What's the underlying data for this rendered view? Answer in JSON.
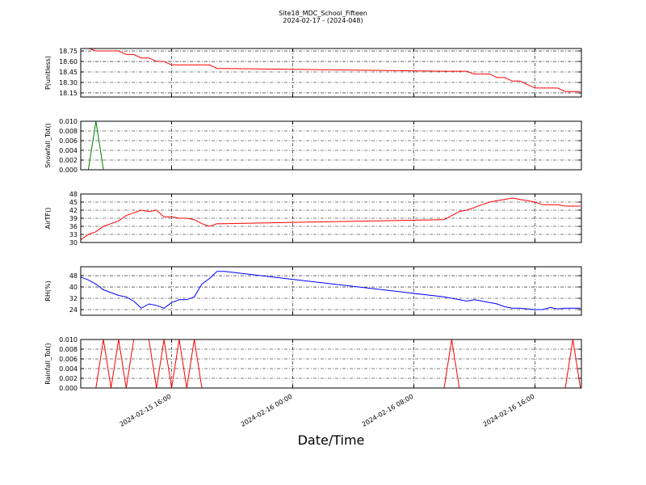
{
  "figure": {
    "title": "Site18_MDC_School_Fifteen",
    "subtitle": "2024-02-17 - (2024-048)",
    "xlabel": "Date/Time",
    "xlim": [
      "2024-02-15 10:00",
      "2024-02-16 19:04"
    ],
    "xticks": [
      "2024-02-15 16:00",
      "2024-02-16 00:00",
      "2024-02-16 08:00",
      "2024-02-16 16:00"
    ],
    "x": [
      "2024-02-15 10:00",
      "2024-02-15 10:30",
      "2024-02-15 11:00",
      "2024-02-15 11:30",
      "2024-02-15 12:00",
      "2024-02-15 12:30",
      "2024-02-15 13:00",
      "2024-02-15 13:30",
      "2024-02-15 14:00",
      "2024-02-15 14:30",
      "2024-02-15 15:00",
      "2024-02-15 15:30",
      "2024-02-15 16:00",
      "2024-02-15 16:30",
      "2024-02-15 17:00",
      "2024-02-15 17:30",
      "2024-02-15 18:00",
      "2024-02-15 18:30",
      "2024-02-15 19:00",
      "2024-02-15 19:30",
      "2024-02-16 10:00",
      "2024-02-16 10:30",
      "2024-02-16 11:00",
      "2024-02-16 11:30",
      "2024-02-16 12:00",
      "2024-02-16 12:30",
      "2024-02-16 13:00",
      "2024-02-16 13:30",
      "2024-02-16 14:00",
      "2024-02-16 14:30",
      "2024-02-16 15:00",
      "2024-02-16 15:30",
      "2024-02-16 16:00",
      "2024-02-16 16:30",
      "2024-02-16 17:00",
      "2024-02-16 17:30",
      "2024-02-16 18:00",
      "2024-02-16 18:30",
      "2024-02-16 19:00"
    ]
  },
  "chart_data": [
    {
      "type": "line",
      "ylabel": "P(unitless)",
      "color": "#ff0000",
      "grid": true,
      "ylim": [
        18.092,
        18.785
      ],
      "yticks": [
        18.15,
        {
          "value": 18.3,
          "label": "18.30"
        },
        18.45,
        {
          "value": 18.6,
          "label": "18.60"
        },
        18.75
      ],
      "values": [
        18.79,
        18.79,
        18.75,
        18.75,
        18.75,
        18.75,
        18.7,
        18.7,
        18.65,
        18.65,
        18.6,
        18.6,
        18.55,
        18.55,
        18.55,
        18.55,
        18.55,
        18.55,
        18.5,
        18.5,
        18.46,
        18.46,
        18.46,
        18.46,
        18.42,
        18.42,
        18.42,
        18.37,
        18.37,
        18.32,
        18.32,
        18.27,
        18.22,
        18.22,
        18.22,
        18.22,
        18.17,
        18.17,
        18.17
      ]
    },
    {
      "type": "line",
      "ylabel": "Snowfall_Tot()",
      "color": "#007f00",
      "grid": true,
      "ylim": [
        0,
        0.01
      ],
      "yticks": [
        {
          "value": 0,
          "label": "0.000"
        },
        {
          "value": 0.002,
          "label": "0.002"
        },
        {
          "value": 0.004,
          "label": "0.004"
        },
        {
          "value": 0.006,
          "label": "0.006"
        },
        {
          "value": 0.008,
          "label": "0.008"
        },
        {
          "value": 0.01,
          "label": "0.010"
        }
      ],
      "values": [
        0,
        0,
        0.01,
        0,
        0,
        0,
        0,
        0,
        0,
        0,
        0,
        0,
        0,
        0,
        0,
        0,
        0,
        0,
        0,
        0,
        0,
        0,
        0,
        0,
        0,
        0,
        0,
        0,
        0,
        0,
        0,
        0,
        0,
        0,
        0,
        0,
        0,
        0,
        0
      ]
    },
    {
      "type": "line",
      "ylabel": "AirTF()",
      "color": "#ff0000",
      "grid": true,
      "ylim": [
        30,
        48
      ],
      "yticks": [
        30,
        33,
        36,
        39,
        42,
        45,
        48
      ],
      "values": [
        31,
        33,
        34,
        36,
        37,
        38,
        40,
        41,
        42,
        41.5,
        42,
        39.5,
        39.5,
        39,
        39,
        38.5,
        37,
        36,
        37,
        37,
        38.5,
        40,
        41.5,
        42,
        43,
        44,
        45,
        45.5,
        46,
        46.5,
        46,
        45.5,
        45,
        44,
        44,
        44,
        43.5,
        43.5,
        43.5
      ]
    },
    {
      "type": "line",
      "ylabel": "RH(%)",
      "color": "#0000ff",
      "grid": true,
      "ylim": [
        20,
        54.3
      ],
      "yticks": [
        24,
        32,
        40,
        48
      ],
      "values": [
        47,
        45,
        42,
        38,
        36,
        34,
        33,
        30,
        25,
        28,
        27,
        25,
        29,
        31,
        31,
        33,
        42,
        46,
        51,
        51,
        33,
        32,
        31,
        30,
        31,
        30,
        29,
        28,
        26,
        25,
        25,
        24.5,
        24,
        24,
        25.5,
        24.5,
        25,
        25,
        25
      ]
    },
    {
      "type": "line",
      "ylabel": "Rainfall_Tot()",
      "color": "#ff0000",
      "grid": true,
      "ylim": [
        0,
        0.01
      ],
      "yticks": [
        {
          "value": 0,
          "label": "0.000"
        },
        {
          "value": 0.002,
          "label": "0.002"
        },
        {
          "value": 0.004,
          "label": "0.004"
        },
        {
          "value": 0.006,
          "label": "0.006"
        },
        {
          "value": 0.008,
          "label": "0.008"
        },
        {
          "value": 0.01,
          "label": "0.010"
        }
      ],
      "values": [
        0,
        0,
        0,
        0.01,
        0,
        0.01,
        0,
        0.01,
        0.01,
        0.01,
        0,
        0.01,
        0,
        0.01,
        0,
        0.01,
        0,
        0,
        0,
        0,
        0,
        0.01,
        0,
        0,
        0,
        0,
        0,
        0,
        0,
        0,
        0,
        0,
        0,
        0,
        0,
        0,
        0,
        0.01,
        0
      ]
    }
  ]
}
